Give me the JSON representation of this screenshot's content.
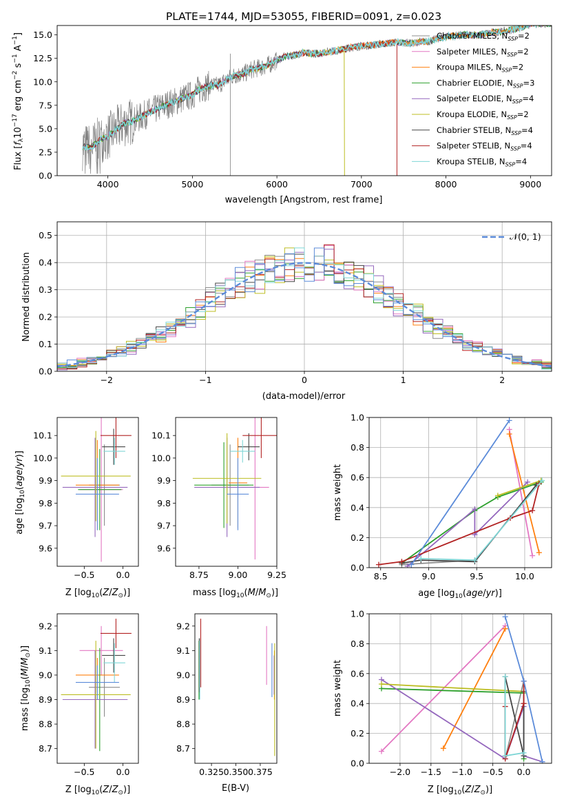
{
  "figure_title": "PLATE=1744, MJD=53055, FIBERID=0091, z=0.023",
  "colors": {
    "chabrier_miles": "#8c8c8c",
    "salpeter_miles": "#e377c2",
    "kroupa_miles": "#ff7f0e",
    "chabrier_elodie": "#2ca02c",
    "salpeter_elodie": "#9467bd",
    "kroupa_elodie": "#bcbd22",
    "chabrier_stelib": "#444444",
    "salpeter_stelib": "#b22222",
    "kroupa_stelib": "#7fd6d6",
    "normal_curve": "#5b8bd9",
    "extra_blue": "#5b8bd9"
  },
  "chart_data": [
    {
      "type": "line",
      "title": "PLATE=1744, MJD=53055, FIBERID=0091, z=0.023",
      "xlabel": "wavelength [Angstrom, rest frame]",
      "ylabel": "Flux [f_λ10^-17 erg cm^-2 s^-1 A^-1]",
      "xlim": [
        3400,
        9250
      ],
      "ylim": [
        0,
        16
      ],
      "xticks": [
        "4000",
        "5000",
        "6000",
        "7000",
        "8000",
        "9000"
      ],
      "yticks": [
        "0.0",
        "2.5",
        "5.0",
        "7.5",
        "10.0",
        "12.5",
        "15.0"
      ],
      "legend_placement": "upper right",
      "legend": [
        "Chabrier MILES, N_SSP=2",
        "Salpeter MILES, N_SSP=2",
        "Kroupa MILES, N_SSP=2",
        "Chabrier ELODIE, N_SSP=3",
        "Salpeter ELODIE, N_SSP=4",
        "Kroupa ELODIE, N_SSP=2",
        "Chabrier STELIB, N_SSP=4",
        "Salpeter STELIB, N_SSP=4",
        "Kroupa STELIB, N_SSP=4"
      ],
      "data_spectrum": {
        "x": [
          3700,
          3800,
          3900,
          4000,
          4100,
          4200,
          4300,
          4400,
          4500,
          4600,
          4700,
          4800,
          4900,
          5000,
          5100,
          5200,
          5300,
          5400,
          5500,
          5600,
          5700,
          5800,
          5900,
          6000,
          6100,
          6200,
          6300,
          6400,
          6500,
          6600,
          6700,
          6800,
          6900,
          7000,
          7100,
          7200,
          7300,
          7400,
          7500,
          7600,
          7700,
          7800,
          7900,
          8000,
          8100,
          8200,
          8300,
          8400,
          8500,
          8600,
          8700,
          8800,
          8900,
          9000
        ],
        "y": [
          3.1,
          3.0,
          3.8,
          4.2,
          4.9,
          5.6,
          5.8,
          6.3,
          6.8,
          7.2,
          7.6,
          7.9,
          8.3,
          8.6,
          9.3,
          9.6,
          9.6,
          10.2,
          10.7,
          10.8,
          11.3,
          11.5,
          11.8,
          12.3,
          12.7,
          12.8,
          13.1,
          13.0,
          13.0,
          13.2,
          13.3,
          13.5,
          13.7,
          13.8,
          13.9,
          14.0,
          14.1,
          14.2,
          14.2,
          14.1,
          14.3,
          14.3,
          14.6,
          14.8,
          14.9,
          15.0,
          15.0,
          15.0,
          15.2,
          15.3,
          15.4,
          15.6,
          15.8,
          16.2
        ]
      },
      "model_endpoints": {
        "Kroupa ELODIE": 6800,
        "Salpeter STELIB": 7420,
        "Salpeter MILES": 7420
      }
    },
    {
      "type": "line",
      "subtype": "step-histogram",
      "xlabel": "(data-model)/error",
      "ylabel": "Normed distribution",
      "xlim": [
        -2.5,
        2.5
      ],
      "ylim": [
        0,
        0.55
      ],
      "xticks": [
        "−2",
        "−1",
        "0",
        "1",
        "2"
      ],
      "yticks": [
        "0.0",
        "0.1",
        "0.2",
        "0.3",
        "0.4",
        "0.5"
      ],
      "grid": true,
      "legend_placement": "upper right",
      "legend": [
        "𝒩(0, 1)"
      ],
      "bin_edges_start": -2.5,
      "bin_width": 0.1
    },
    {
      "type": "scatter",
      "subtype": "errorbar",
      "xlabel": "Z [log10(Z/Z⊙)]",
      "ylabel": "age  [log10(age/yr)]",
      "xlim": [
        -0.85,
        0.2
      ],
      "ylim": [
        9.52,
        10.18
      ],
      "xticks": [
        "−0.5",
        "0.0"
      ],
      "yticks": [
        "9.6",
        "9.7",
        "9.8",
        "9.9",
        "10.0",
        "10.1"
      ],
      "points": [
        {
          "series": "Chabrier MILES",
          "x": -0.24,
          "y": 9.88,
          "xerr": 0.2,
          "yerr": 0.18
        },
        {
          "series": "Salpeter MILES",
          "x": -0.28,
          "y": 9.86,
          "xerr": 0.28,
          "yerr": 0.32
        },
        {
          "series": "Kroupa MILES",
          "x": -0.33,
          "y": 9.88,
          "xerr": 0.28,
          "yerr": 0.2
        },
        {
          "series": "Chabrier ELODIE",
          "x": -0.3,
          "y": 9.86,
          "xerr": 0.28,
          "yerr": 0.18
        },
        {
          "series": "Salpeter ELODIE",
          "x": -0.36,
          "y": 9.87,
          "xerr": 0.42,
          "yerr": 0.22
        },
        {
          "series": "Kroupa ELODIE",
          "x": -0.35,
          "y": 9.92,
          "xerr": 0.45,
          "yerr": 0.2
        },
        {
          "series": "Chabrier STELIB",
          "x": -0.12,
          "y": 10.05,
          "xerr": 0.15,
          "yerr": 0.08
        },
        {
          "series": "Salpeter STELIB",
          "x": -0.09,
          "y": 10.1,
          "xerr": 0.2,
          "yerr": 0.1
        },
        {
          "series": "Kroupa STELIB",
          "x": -0.11,
          "y": 10.03,
          "xerr": 0.14,
          "yerr": 0.06
        },
        {
          "series": "extra",
          "x": -0.33,
          "y": 9.84,
          "xerr": 0.28,
          "yerr": 0.16
        }
      ]
    },
    {
      "type": "scatter",
      "subtype": "errorbar",
      "xlabel": "mass [log10(M/M⊙)]",
      "ylabel": "",
      "xlim": [
        8.6,
        9.25
      ],
      "ylim": [
        9.52,
        10.18
      ],
      "xticks": [
        "8.75",
        "9.00",
        "9.25"
      ],
      "yticks": [
        "9.6",
        "9.7",
        "9.8",
        "9.9",
        "10.0",
        "10.1"
      ],
      "points": [
        {
          "series": "Chabrier MILES",
          "x": 8.95,
          "y": 9.88,
          "xerr": 0.12,
          "yerr": 0.18
        },
        {
          "series": "Salpeter MILES",
          "x": 9.11,
          "y": 9.87,
          "xerr": 0.09,
          "yerr": 0.32
        },
        {
          "series": "Kroupa MILES",
          "x": 9.0,
          "y": 9.89,
          "xerr": 0.06,
          "yerr": 0.2
        },
        {
          "series": "Chabrier ELODIE",
          "x": 8.91,
          "y": 9.88,
          "xerr": 0.19,
          "yerr": 0.19
        },
        {
          "series": "Salpeter ELODIE",
          "x": 8.93,
          "y": 9.87,
          "xerr": 0.21,
          "yerr": 0.22
        },
        {
          "series": "Kroupa ELODIE",
          "x": 8.93,
          "y": 9.91,
          "xerr": 0.22,
          "yerr": 0.2
        },
        {
          "series": "Chabrier STELIB",
          "x": 9.07,
          "y": 10.05,
          "xerr": 0.07,
          "yerr": 0.06
        },
        {
          "series": "Salpeter STELIB",
          "x": 9.15,
          "y": 10.1,
          "xerr": 0.12,
          "yerr": 0.1
        },
        {
          "series": "Kroupa STELIB",
          "x": 9.03,
          "y": 10.03,
          "xerr": 0.08,
          "yerr": 0.05
        },
        {
          "series": "extra",
          "x": 9.0,
          "y": 9.84,
          "xerr": 0.07,
          "yerr": 0.16
        }
      ]
    },
    {
      "type": "line",
      "xlabel": "age  [log10(age/yr)]",
      "ylabel": "mass weight",
      "xlim": [
        8.38,
        10.28
      ],
      "ylim": [
        0,
        1.0
      ],
      "xticks": [
        "8.5",
        "9.0",
        "9.5",
        "10.0"
      ],
      "yticks": [
        "0.0",
        "0.2",
        "0.4",
        "0.6",
        "0.8",
        "1.0"
      ],
      "grid": true,
      "series": [
        {
          "name": "Chabrier MILES",
          "x": [
            8.72,
            9.48
          ],
          "y": [
            0.02,
            0.05
          ]
        },
        {
          "name": "Salpeter MILES",
          "x": [
            9.84,
            10.08
          ],
          "y": [
            0.92,
            0.08
          ]
        },
        {
          "name": "Kroupa MILES",
          "x": [
            9.84,
            10.15
          ],
          "y": [
            0.89,
            0.1
          ]
        },
        {
          "name": "Chabrier ELODIE",
          "x": [
            8.72,
            9.48,
            9.72,
            10.17
          ],
          "y": [
            0.03,
            0.38,
            0.47,
            0.57
          ]
        },
        {
          "name": "Salpeter ELODIE",
          "x": [
            8.78,
            9.48,
            9.48,
            10.03
          ],
          "y": [
            0.01,
            0.39,
            0.22,
            0.57
          ]
        },
        {
          "name": "Kroupa ELODIE",
          "x": [
            9.72,
            10.17
          ],
          "y": [
            0.48,
            0.58
          ]
        },
        {
          "name": "Chabrier STELIB",
          "x": [
            8.72,
            8.92,
            9.48,
            10.12
          ],
          "y": [
            0.03,
            0.05,
            0.04,
            0.55
          ]
        },
        {
          "name": "Salpeter STELIB",
          "x": [
            8.48,
            8.72,
            9.85,
            10.08,
            10.15
          ],
          "y": [
            0.02,
            0.04,
            0.33,
            0.38,
            0.56
          ]
        },
        {
          "name": "Kroupa STELIB",
          "x": [
            8.92,
            9.48,
            10.18
          ],
          "y": [
            0.06,
            0.05,
            0.58
          ]
        },
        {
          "name": "extra",
          "x": [
            8.82,
            9.84
          ],
          "y": [
            0.02,
            0.98
          ]
        }
      ]
    },
    {
      "type": "scatter",
      "subtype": "errorbar",
      "xlabel": "Z [log10(Z/Z⊙)]",
      "ylabel": "mass [log10(M/M⊙)]",
      "xlim": [
        -0.85,
        0.2
      ],
      "ylim": [
        8.64,
        9.25
      ],
      "xticks": [
        "−0.5",
        "0.0"
      ],
      "yticks": [
        "8.7",
        "8.8",
        "8.9",
        "9.0",
        "9.1",
        "9.2"
      ],
      "points": [
        {
          "series": "Chabrier MILES",
          "x": -0.24,
          "y": 8.95,
          "xerr": 0.2,
          "yerr": 0.12
        },
        {
          "series": "Salpeter MILES",
          "x": -0.28,
          "y": 9.1,
          "xerr": 0.28,
          "yerr": 0.1
        },
        {
          "series": "Kroupa MILES",
          "x": -0.33,
          "y": 9.0,
          "xerr": 0.28,
          "yerr": 0.07
        },
        {
          "series": "Chabrier ELODIE",
          "x": -0.3,
          "y": 8.9,
          "xerr": 0.28,
          "yerr": 0.21
        },
        {
          "series": "Salpeter ELODIE",
          "x": -0.36,
          "y": 8.9,
          "xerr": 0.42,
          "yerr": 0.2
        },
        {
          "series": "Kroupa ELODIE",
          "x": -0.35,
          "y": 8.92,
          "xerr": 0.45,
          "yerr": 0.22
        },
        {
          "series": "Chabrier STELIB",
          "x": -0.12,
          "y": 9.08,
          "xerr": 0.15,
          "yerr": 0.07
        },
        {
          "series": "Salpeter STELIB",
          "x": -0.09,
          "y": 9.17,
          "xerr": 0.2,
          "yerr": 0.06
        },
        {
          "series": "Kroupa STELIB",
          "x": -0.11,
          "y": 9.05,
          "xerr": 0.14,
          "yerr": 0.08
        },
        {
          "series": "extra",
          "x": -0.33,
          "y": 8.97,
          "xerr": 0.28,
          "yerr": 0.07
        }
      ]
    },
    {
      "type": "scatter",
      "subtype": "errorbar",
      "xlabel": "E(B-V)",
      "ylabel": "",
      "xlim": [
        0.308,
        0.392
      ],
      "ylim": [
        8.64,
        9.25
      ],
      "xticks": [
        "0.325",
        "0.350",
        "0.375"
      ],
      "yticks": [
        "8.7",
        "8.8",
        "8.9",
        "9.0",
        "9.1",
        "9.2"
      ],
      "points": [
        {
          "series": "Chabrier MILES",
          "x": 0.3128,
          "y": 9.03,
          "yerr": 0.12
        },
        {
          "series": "Salpeter MILES",
          "x": 0.3815,
          "y": 9.08,
          "yerr": 0.12
        },
        {
          "series": "Kroupa MILES",
          "x": 0.3895,
          "y": 9.0,
          "yerr": 0.1
        },
        {
          "series": "Chabrier ELODIE",
          "x": 0.3122,
          "y": 9.02,
          "yerr": 0.12
        },
        {
          "series": "Salpeter ELODIE",
          "x": 0.3892,
          "y": 9.0,
          "yerr": 0.08
        },
        {
          "series": "Kroupa ELODIE",
          "x": 0.3898,
          "y": 8.9,
          "yerr": 0.23
        },
        {
          "series": "Chabrier STELIB",
          "x": 0.3125,
          "y": 9.04,
          "yerr": 0.11
        },
        {
          "series": "Salpeter STELIB",
          "x": 0.314,
          "y": 9.09,
          "yerr": 0.14
        },
        {
          "series": "Kroupa STELIB",
          "x": 0.313,
          "y": 9.02,
          "yerr": 0.12
        },
        {
          "series": "extra",
          "x": 0.387,
          "y": 9.02,
          "yerr": 0.11
        }
      ]
    },
    {
      "type": "line",
      "xlabel": "Z [log10(Z/Z⊙)]",
      "ylabel": "mass weight",
      "xlim": [
        -2.5,
        0.45
      ],
      "ylim": [
        0,
        1.0
      ],
      "xticks": [
        "−2.0",
        "−1.5",
        "−1.0",
        "−0.5",
        "0.0"
      ],
      "yticks": [
        "0.0",
        "0.2",
        "0.4",
        "0.6",
        "0.8",
        "1.0"
      ],
      "grid": true,
      "series": [
        {
          "name": "Chabrier MILES",
          "x": [
            -0.3,
            0.0
          ],
          "y": [
            0.03,
            0.55
          ]
        },
        {
          "name": "Salpeter MILES",
          "x": [
            -2.3,
            -0.3
          ],
          "y": [
            0.08,
            0.92
          ]
        },
        {
          "name": "Kroupa MILES",
          "x": [
            -1.3,
            -0.3
          ],
          "y": [
            0.1,
            0.9
          ]
        },
        {
          "name": "Chabrier ELODIE",
          "x": [
            -2.3,
            0.0,
            0.0
          ],
          "y": [
            0.5,
            0.47,
            0.03
          ]
        },
        {
          "name": "Salpeter ELODIE",
          "x": [
            -2.3,
            -0.3,
            0.0,
            0.0,
            0.3
          ],
          "y": [
            0.56,
            0.03,
            0.38,
            0.05,
            0.01
          ]
        },
        {
          "name": "Kroupa ELODIE",
          "x": [
            -2.3,
            0.0
          ],
          "y": [
            0.53,
            0.48
          ]
        },
        {
          "name": "Chabrier STELIB",
          "x": [
            -0.3,
            -0.3,
            0.0,
            0.0
          ],
          "y": [
            0.05,
            0.58,
            0.05,
            0.48
          ]
        },
        {
          "name": "Salpeter STELIB",
          "x": [
            -0.3,
            -0.3,
            0.0,
            0.0
          ],
          "y": [
            0.38,
            0.03,
            0.4,
            0.55
          ]
        },
        {
          "name": "Kroupa STELIB",
          "x": [
            -0.3,
            -0.3,
            0.0
          ],
          "y": [
            0.58,
            0.05,
            0.07
          ]
        },
        {
          "name": "extra",
          "x": [
            -0.3,
            0.0,
            0.3
          ],
          "y": [
            0.98,
            0.55,
            0.01
          ]
        }
      ]
    }
  ]
}
